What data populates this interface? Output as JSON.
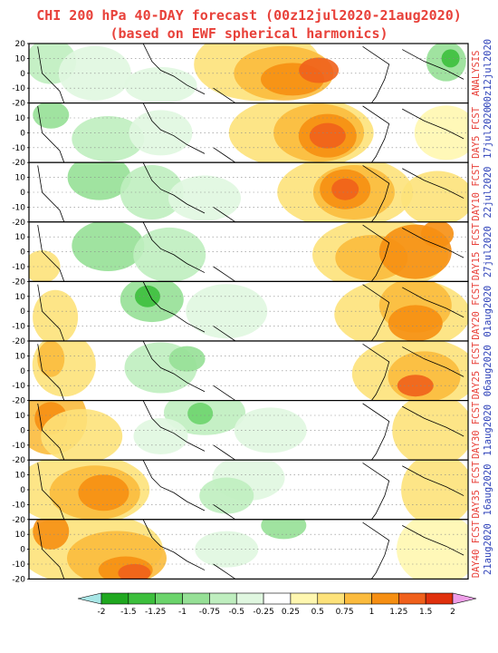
{
  "title": {
    "line1": "CHI 200 hPa 40-DAY forecast (00z12jul2020-21aug2020)",
    "line2": "(based on EWF spherical harmonics)"
  },
  "colors": {
    "title": "#e8413a",
    "label_red": "#e8413a",
    "label_blue": "#2b3fb8",
    "neg": [
      "#1fa81f",
      "#3cbf3c",
      "#6bd46b",
      "#96e096",
      "#bfeebf",
      "#e0f7e0"
    ],
    "pos": [
      "#fff7b0",
      "#fde27a",
      "#fbbb3d",
      "#f68f12",
      "#f0601b",
      "#e0300c"
    ],
    "under": "#a8e6e6",
    "over": "#ee9ee8"
  },
  "y_ticks": [
    "20",
    "10",
    "0",
    "-10",
    "-20"
  ],
  "panels": [
    {
      "name": "ANALYSIS",
      "date": "00z12jul2020"
    },
    {
      "name": "DAY5 FCST",
      "date": "17jul2020"
    },
    {
      "name": "DAY10 FCST",
      "date": "22jul2020"
    },
    {
      "name": "DAY15 FCST",
      "date": "27jul2020"
    },
    {
      "name": "DAY20 FCST",
      "date": "01aug2020"
    },
    {
      "name": "DAY25 FCST",
      "date": "06aug2020"
    },
    {
      "name": "DAY30 FCST",
      "date": "11aug2020"
    },
    {
      "name": "DAY35 FCST",
      "date": "16aug2020"
    },
    {
      "name": "DAY40 FCST",
      "date": "21aug2020"
    }
  ],
  "colorbar": {
    "labels": [
      "-2",
      "-1.5",
      "-1.25",
      "-1",
      "-0.75",
      "-0.5",
      "-0.25",
      "0.25",
      "0.5",
      "0.75",
      "1",
      "1.25",
      "1.5",
      "2"
    ]
  }
}
